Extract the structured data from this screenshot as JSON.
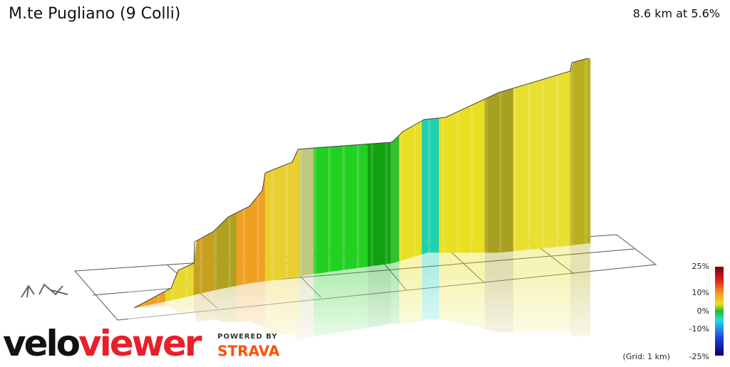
{
  "header": {
    "title": "M.te Pugliano (9 Colli)",
    "summary": "8.6 km at 5.6%"
  },
  "legend": {
    "ticks": [
      "25%",
      "10%",
      "0%",
      "-10%",
      "-25%"
    ],
    "note": "(Grid: 1 km)"
  },
  "branding": {
    "logo_part1": "velo",
    "logo_part2": "viewer",
    "powered": "POWERED BY",
    "partner": "STRAVA"
  }
}
